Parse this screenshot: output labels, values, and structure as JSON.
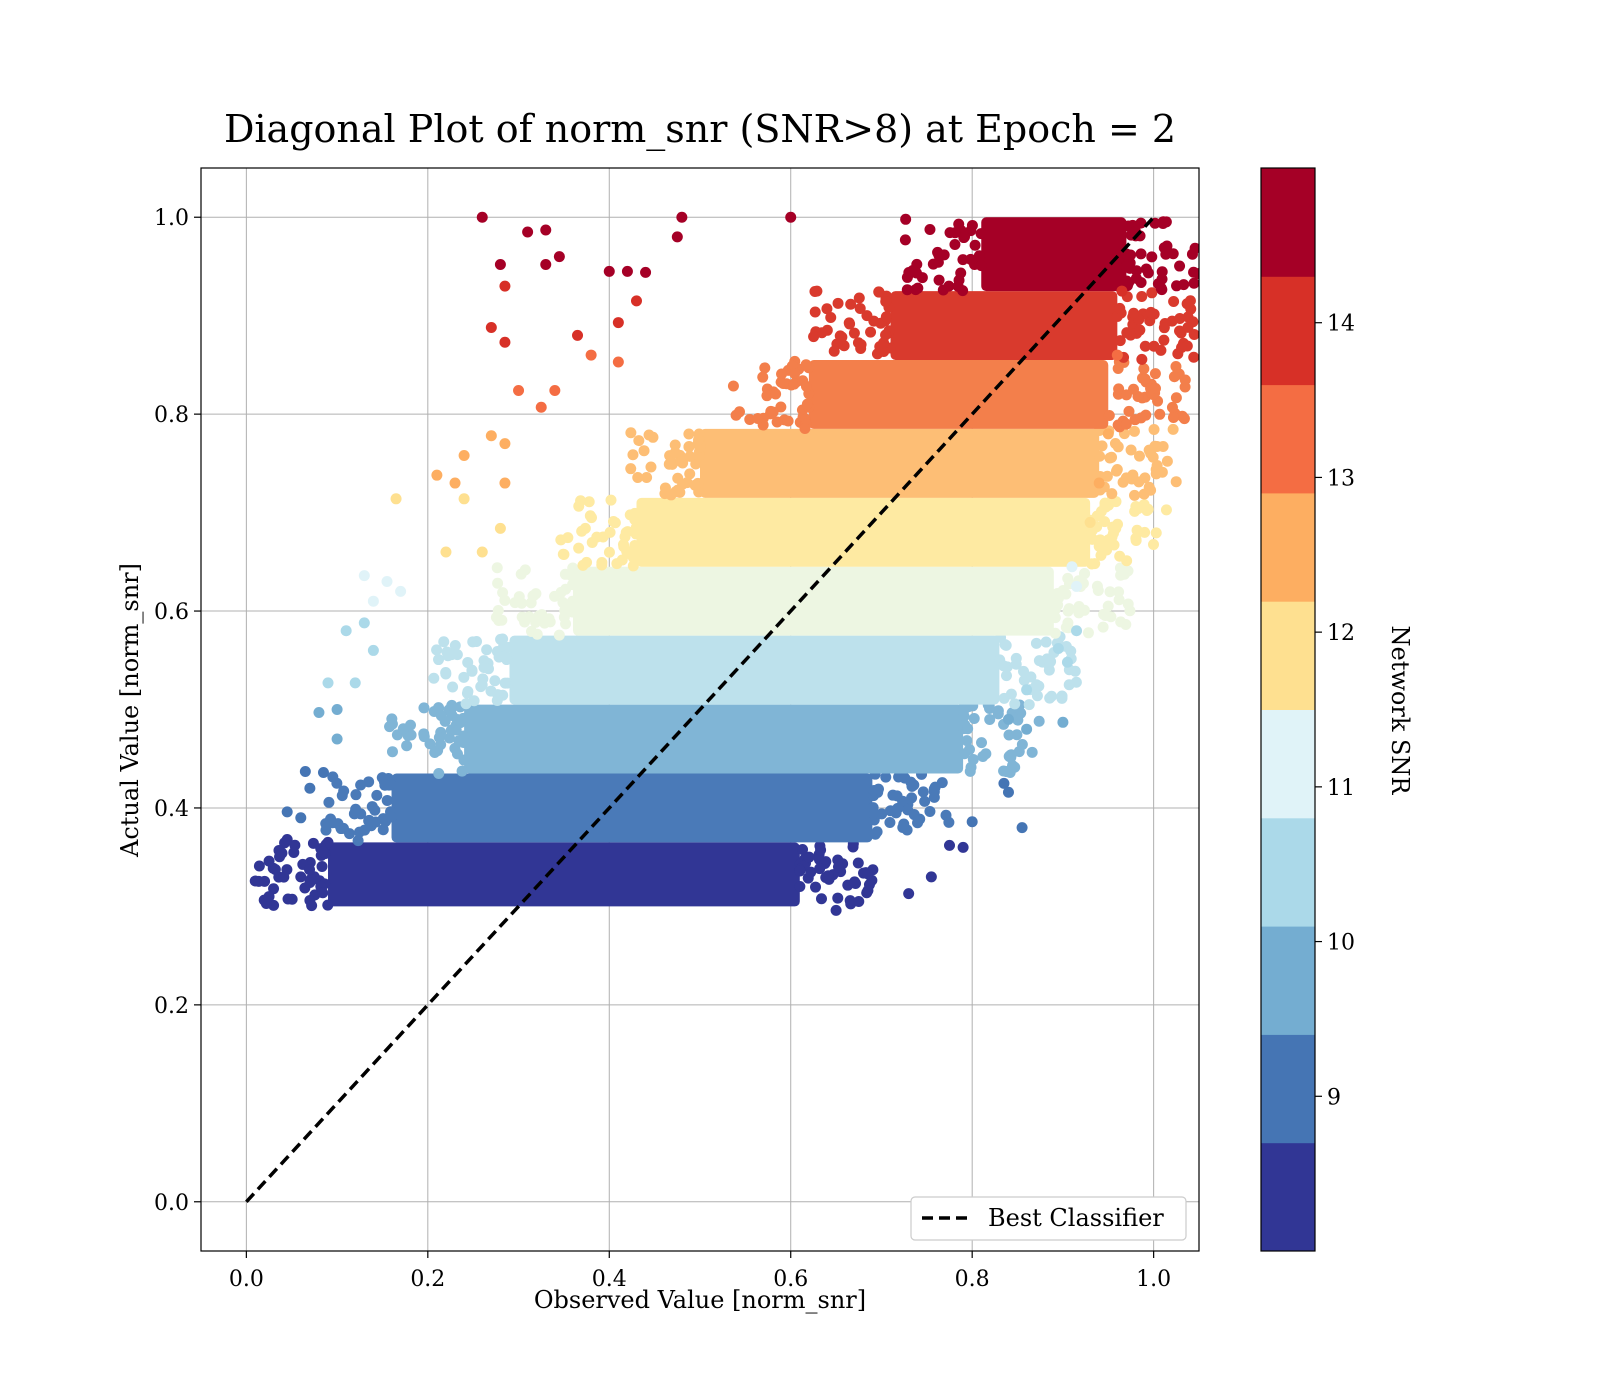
{
  "chart_data": {
    "type": "scatter",
    "title": "Diagonal Plot of norm_snr (SNR>8) at Epoch = 2",
    "xlabel": "Observed Value [norm_snr]",
    "ylabel": "Actual Value [norm_snr]",
    "xlim": [
      -0.05,
      1.05
    ],
    "ylim": [
      -0.05,
      1.05
    ],
    "xticks": [
      0.0,
      0.2,
      0.4,
      0.6,
      0.8,
      1.0
    ],
    "yticks": [
      0.0,
      0.2,
      0.4,
      0.6,
      0.8,
      1.0
    ],
    "xtick_labels": [
      "0.0",
      "0.2",
      "0.4",
      "0.6",
      "0.8",
      "1.0"
    ],
    "ytick_labels": [
      "0.0",
      "0.2",
      "0.4",
      "0.6",
      "0.8",
      "1.0"
    ],
    "grid": true,
    "colormap": "RdYlBu_r (discrete, 10 levels)",
    "colorbar": {
      "label": "Network SNR",
      "range": [
        8.0,
        15.0
      ],
      "ticks": [
        9,
        10,
        11,
        12,
        13,
        14
      ],
      "tick_labels": [
        "9",
        "10",
        "11",
        "12",
        "13",
        "14"
      ],
      "colors": [
        "#313695",
        "#4575b4",
        "#74add1",
        "#abd9e9",
        "#e0f3f8",
        "#fee090",
        "#fdae61",
        "#f46d43",
        "#d73027",
        "#a50026"
      ]
    },
    "bands": [
      {
        "y_range": [
          0.3,
          0.365
        ],
        "x_core": [
          0.09,
          0.61
        ],
        "color": "#313695"
      },
      {
        "y_range": [
          0.365,
          0.435
        ],
        "x_core": [
          0.16,
          0.69
        ],
        "color": "#4a7ab8"
      },
      {
        "y_range": [
          0.435,
          0.505
        ],
        "x_core": [
          0.24,
          0.79
        ],
        "color": "#80b5d6"
      },
      {
        "y_range": [
          0.505,
          0.575
        ],
        "x_core": [
          0.29,
          0.83
        ],
        "color": "#bde1ec"
      },
      {
        "y_range": [
          0.575,
          0.645
        ],
        "x_core": [
          0.36,
          0.89
        ],
        "color": "#edf6e2"
      },
      {
        "y_range": [
          0.645,
          0.715
        ],
        "x_core": [
          0.43,
          0.93
        ],
        "color": "#feeaa2"
      },
      {
        "y_range": [
          0.715,
          0.785
        ],
        "x_core": [
          0.5,
          0.94
        ],
        "color": "#fdbe75"
      },
      {
        "y_range": [
          0.785,
          0.855
        ],
        "x_core": [
          0.62,
          0.95
        ],
        "color": "#f37f4b"
      },
      {
        "y_range": [
          0.855,
          0.925
        ],
        "x_core": [
          0.71,
          0.96
        ],
        "color": "#d93a2d"
      },
      {
        "y_range": [
          0.925,
          1.0
        ],
        "x_core": [
          0.81,
          0.97
        ],
        "color": "#a50026"
      }
    ],
    "outliers": [
      {
        "x": 0.26,
        "y": 1.0,
        "c": 9
      },
      {
        "x": 0.31,
        "y": 0.985,
        "c": 9
      },
      {
        "x": 0.33,
        "y": 0.987,
        "c": 9
      },
      {
        "x": 0.28,
        "y": 0.952,
        "c": 9
      },
      {
        "x": 0.33,
        "y": 0.952,
        "c": 9
      },
      {
        "x": 0.345,
        "y": 0.96,
        "c": 9
      },
      {
        "x": 0.48,
        "y": 1.0,
        "c": 9
      },
      {
        "x": 0.475,
        "y": 0.98,
        "c": 9
      },
      {
        "x": 0.6,
        "y": 1.0,
        "c": 9
      },
      {
        "x": 0.4,
        "y": 0.945,
        "c": 9
      },
      {
        "x": 0.42,
        "y": 0.945,
        "c": 9
      },
      {
        "x": 0.44,
        "y": 0.944,
        "c": 9
      },
      {
        "x": 0.27,
        "y": 0.888,
        "c": 8
      },
      {
        "x": 0.285,
        "y": 0.93,
        "c": 8
      },
      {
        "x": 0.285,
        "y": 0.873,
        "c": 8
      },
      {
        "x": 0.365,
        "y": 0.88,
        "c": 8
      },
      {
        "x": 0.41,
        "y": 0.893,
        "c": 8
      },
      {
        "x": 0.43,
        "y": 0.915,
        "c": 8
      },
      {
        "x": 0.3,
        "y": 0.824,
        "c": 7
      },
      {
        "x": 0.325,
        "y": 0.807,
        "c": 7
      },
      {
        "x": 0.38,
        "y": 0.86,
        "c": 7
      },
      {
        "x": 0.41,
        "y": 0.853,
        "c": 7
      },
      {
        "x": 0.34,
        "y": 0.824,
        "c": 7
      },
      {
        "x": 0.21,
        "y": 0.738,
        "c": 6
      },
      {
        "x": 0.24,
        "y": 0.758,
        "c": 6
      },
      {
        "x": 0.27,
        "y": 0.778,
        "c": 6
      },
      {
        "x": 0.285,
        "y": 0.77,
        "c": 6
      },
      {
        "x": 0.285,
        "y": 0.73,
        "c": 6
      },
      {
        "x": 0.23,
        "y": 0.73,
        "c": 6
      },
      {
        "x": 0.165,
        "y": 0.714,
        "c": 5
      },
      {
        "x": 0.24,
        "y": 0.714,
        "c": 5
      },
      {
        "x": 0.22,
        "y": 0.66,
        "c": 5
      },
      {
        "x": 0.26,
        "y": 0.66,
        "c": 5
      },
      {
        "x": 0.28,
        "y": 0.684,
        "c": 5
      },
      {
        "x": 0.13,
        "y": 0.636,
        "c": 4
      },
      {
        "x": 0.155,
        "y": 0.63,
        "c": 4
      },
      {
        "x": 0.17,
        "y": 0.62,
        "c": 4
      },
      {
        "x": 0.14,
        "y": 0.61,
        "c": 4
      },
      {
        "x": 0.11,
        "y": 0.58,
        "c": 3
      },
      {
        "x": 0.13,
        "y": 0.588,
        "c": 3
      },
      {
        "x": 0.09,
        "y": 0.527,
        "c": 3
      },
      {
        "x": 0.12,
        "y": 0.527,
        "c": 3
      },
      {
        "x": 0.14,
        "y": 0.56,
        "c": 3
      },
      {
        "x": 0.08,
        "y": 0.497,
        "c": 2
      },
      {
        "x": 0.1,
        "y": 0.47,
        "c": 2
      },
      {
        "x": 0.1,
        "y": 0.5,
        "c": 2
      },
      {
        "x": 0.065,
        "y": 0.437,
        "c": 1
      },
      {
        "x": 0.045,
        "y": 0.396,
        "c": 1
      },
      {
        "x": 0.07,
        "y": 0.42,
        "c": 1
      },
      {
        "x": 0.085,
        "y": 0.436,
        "c": 1
      },
      {
        "x": 0.06,
        "y": 0.39,
        "c": 1
      },
      {
        "x": 0.025,
        "y": 0.346,
        "c": 0
      },
      {
        "x": 0.022,
        "y": 0.303,
        "c": 0
      },
      {
        "x": 0.025,
        "y": 0.31,
        "c": 0
      },
      {
        "x": 0.045,
        "y": 0.368,
        "c": 0
      },
      {
        "x": 0.06,
        "y": 0.33,
        "c": 0
      },
      {
        "x": 0.97,
        "y": 0.95,
        "c": 9
      },
      {
        "x": 0.965,
        "y": 0.925,
        "c": 8
      },
      {
        "x": 0.96,
        "y": 0.86,
        "c": 7
      },
      {
        "x": 0.95,
        "y": 0.78,
        "c": 6
      },
      {
        "x": 0.94,
        "y": 0.73,
        "c": 6
      },
      {
        "x": 0.93,
        "y": 0.69,
        "c": 5
      },
      {
        "x": 0.91,
        "y": 0.645,
        "c": 4
      },
      {
        "x": 0.915,
        "y": 0.625,
        "c": 4
      },
      {
        "x": 0.915,
        "y": 0.58,
        "c": 3
      },
      {
        "x": 0.895,
        "y": 0.562,
        "c": 3
      },
      {
        "x": 0.905,
        "y": 0.548,
        "c": 3
      },
      {
        "x": 0.86,
        "y": 0.52,
        "c": 3
      },
      {
        "x": 0.9,
        "y": 0.487,
        "c": 2
      },
      {
        "x": 0.86,
        "y": 0.48,
        "c": 2
      },
      {
        "x": 0.84,
        "y": 0.49,
        "c": 2
      },
      {
        "x": 0.835,
        "y": 0.425,
        "c": 1
      },
      {
        "x": 0.855,
        "y": 0.38,
        "c": 1
      },
      {
        "x": 0.84,
        "y": 0.416,
        "c": 1
      },
      {
        "x": 0.8,
        "y": 0.386,
        "c": 1
      },
      {
        "x": 0.79,
        "y": 0.36,
        "c": 0
      },
      {
        "x": 0.775,
        "y": 0.362,
        "c": 0
      },
      {
        "x": 0.755,
        "y": 0.33,
        "c": 0
      },
      {
        "x": 0.73,
        "y": 0.313,
        "c": 0
      },
      {
        "x": 0.65,
        "y": 0.296,
        "c": 0
      },
      {
        "x": 0.675,
        "y": 0.305,
        "c": 0
      }
    ],
    "series": [
      {
        "name": "Best Classifier",
        "type": "line",
        "style": "dashed",
        "color": "#000000",
        "x": [
          0.0,
          1.0
        ],
        "y": [
          0.0,
          1.0
        ]
      }
    ],
    "legend": {
      "placement": "lower right",
      "entries": [
        "Best Classifier"
      ]
    }
  }
}
